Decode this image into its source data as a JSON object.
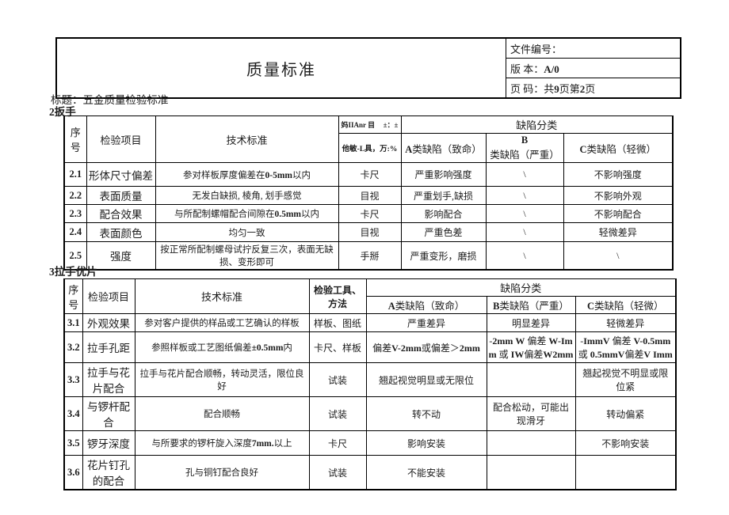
{
  "page": {
    "title": "质量标准",
    "file_no_label": "文件编号：",
    "file_no_value": "",
    "version_label": "版 本：",
    "version_value": "A/0",
    "page_label": "页 码：",
    "page_value": "共9页第2页",
    "subtitle": "标题：五金质量检验标准"
  },
  "s2": {
    "heading": "2扳手",
    "cols": {
      "no": "序号",
      "item": "检验项目",
      "std": "技术标准",
      "tool_line1_left": "妈IIAnr 目",
      "tool_line1_right": "±：±",
      "tool_line2": "他敏-L具，万:%",
      "group": "缺陷分类",
      "a": "A类缺陷（致命）",
      "b": "B类缺陷（严重）",
      "c": "C类缺陷（轻微）"
    },
    "rows": [
      {
        "no": "2.1",
        "item": "形体尺寸偏差",
        "std": "参对样板厚度偏差在0-5mm以内",
        "tool": "卡尺",
        "a": "严重影响强度",
        "b": "\\",
        "c": "不影响强度"
      },
      {
        "no": "2.2",
        "item": "表面质量",
        "std": "无发白缺损, 棱角, 划手感觉",
        "tool": "目视",
        "a": "严重划手,缺损",
        "b": "\\",
        "c": "不影响外观"
      },
      {
        "no": "2.3",
        "item": "配合效果",
        "std": "与所配制螺帽配合间隙在0.5mm以内",
        "tool": "卡尺",
        "a": "影响配合",
        "b": "\\",
        "c": "不影响配合"
      },
      {
        "no": "2.4",
        "item": "表面颜色",
        "std": "均匀一致",
        "tool": "目视",
        "a": "严重色差",
        "b": "\\",
        "c": "轻微差异"
      },
      {
        "no": "2.5",
        "item": "强度",
        "std": "按正常所配制螺母试拧反复三次，表面无缺 损、变形即可",
        "tool": "手掰",
        "a": "严重变形，磨损",
        "b": "\\",
        "c": "\\"
      }
    ]
  },
  "s3": {
    "heading": "3拉手优片",
    "cols": {
      "no": "序号",
      "item": "检验项目",
      "std": "技术标准",
      "tool": "检验工具、方法",
      "group": "缺陷分类",
      "a": "A类缺陷（致命）",
      "b": "B类缺陷（严重）",
      "c": "C类缺陷（轻微）"
    },
    "rows": [
      {
        "no": "3.1",
        "item": "外观效果",
        "std": "参对客户提供的样品或工艺确认的样板",
        "tool": "样板、图纸",
        "a": "严重差异",
        "b": "明显差异",
        "c": "轻微差异"
      },
      {
        "no": "3.2",
        "item": "拉手孔距",
        "std": "参照样板或工艺图纸偏差±0.5mm内",
        "tool": "卡尺、样板",
        "a": "偏差V-2mm或偏差＞2mm",
        "b": "-2mm W 偏差 W-Imm 或 IW偏差W2mm",
        "c": "-ImmV 偏差 V-0.5mm 或 0.5mmV偏差V Imm"
      },
      {
        "no": "3.3",
        "item": "拉手与花片配合",
        "std": "拉手与花片配合顺畅，转动灵活，限位良好",
        "tool": "试装",
        "a": "翘起视觉明显或无限位",
        "b": "",
        "c": "翘起视觉不明显或限 位紧"
      },
      {
        "no": "3.4",
        "item": "与锣杆配合",
        "std": "配合顺畅",
        "tool": "试装",
        "a": "转不动",
        "b": "配合松动，可能出现滑牙",
        "c": "转动偏紧"
      },
      {
        "no": "3.5",
        "item": "锣牙深度",
        "std": "与所要求的锣杆旋入深度7mm.以上",
        "tool": "卡尺",
        "a": "影响安装",
        "b": "",
        "c": "不影响安装"
      },
      {
        "no": "3.6",
        "item": "花片钉孔的配合",
        "std": "孔与铜钉配合良好",
        "tool": "试装",
        "a": "不能安装",
        "b": "",
        "c": ""
      }
    ]
  }
}
